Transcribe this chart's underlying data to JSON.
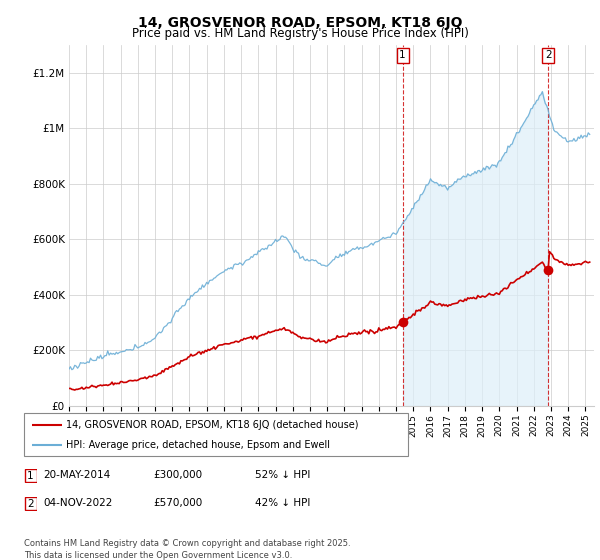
{
  "title": "14, GROSVENOR ROAD, EPSOM, KT18 6JQ",
  "subtitle": "Price paid vs. HM Land Registry's House Price Index (HPI)",
  "hpi_color": "#6baed6",
  "hpi_fill_color": "#ddeef8",
  "price_color": "#cc0000",
  "transaction1": {
    "date": "20-MAY-2014",
    "price": 300000,
    "label": "1",
    "year": 2014.38
  },
  "transaction2": {
    "date": "04-NOV-2022",
    "price": 570000,
    "label": "2",
    "year": 2022.84
  },
  "legend_line1": "14, GROSVENOR ROAD, EPSOM, KT18 6JQ (detached house)",
  "legend_line2": "HPI: Average price, detached house, Epsom and Ewell",
  "footnote": "Contains HM Land Registry data © Crown copyright and database right 2025.\nThis data is licensed under the Open Government Licence v3.0.",
  "table_rows": [
    {
      "num": "1",
      "date": "20-MAY-2014",
      "price": "£300,000",
      "note": "52% ↓ HPI"
    },
    {
      "num": "2",
      "date": "04-NOV-2022",
      "price": "£570,000",
      "note": "42% ↓ HPI"
    }
  ],
  "ylim": [
    0,
    1300000
  ],
  "xlim_start": 1995.0,
  "xlim_end": 2025.5
}
